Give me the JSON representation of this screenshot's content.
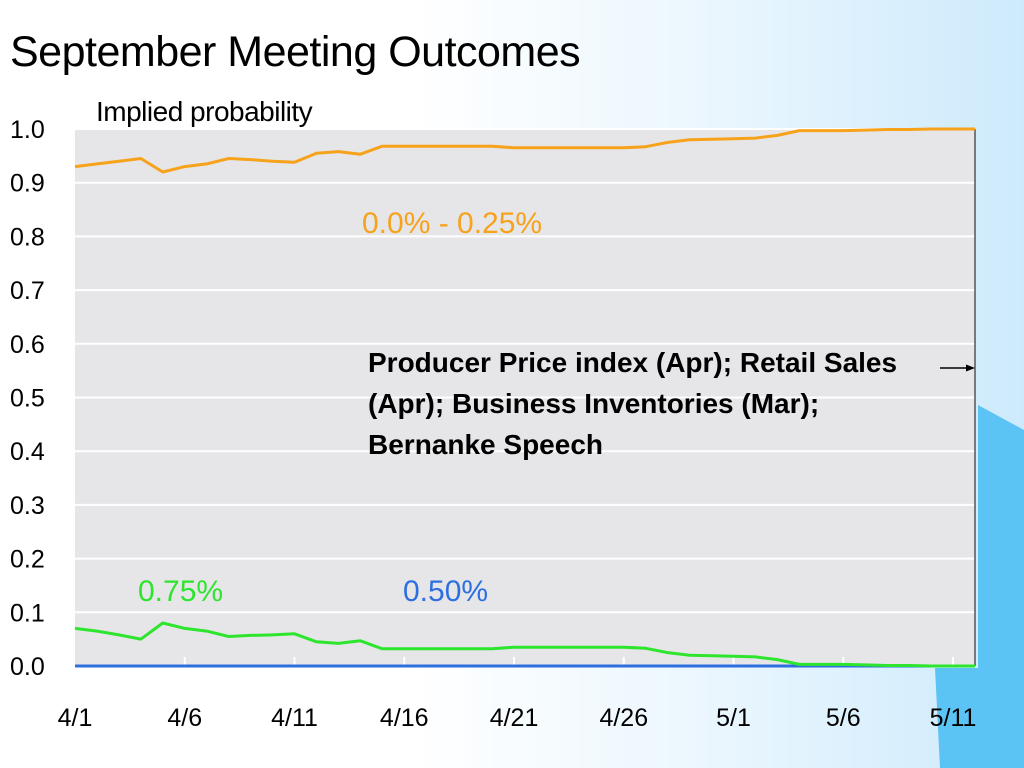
{
  "colors": {
    "plot_bg": "#e6e6e9",
    "grid": "#ffffff",
    "series_0_0_25": "#f7a21b",
    "series_0_50": "#2e6fe0",
    "series_0_75": "#2ee52e",
    "accent_blue": "#5cc3f5"
  },
  "chart_data": {
    "type": "line",
    "title": "September Meeting Outcomes",
    "ylabel": "Implied probability",
    "xlabel": "",
    "ylim": [
      0,
      1
    ],
    "grid": true,
    "y_ticks": [
      "0.0",
      "0.1",
      "0.2",
      "0.3",
      "0.4",
      "0.5",
      "0.6",
      "0.7",
      "0.8",
      "0.9",
      "1.0"
    ],
    "x_ticks": [
      "4/1",
      "4/6",
      "4/11",
      "4/16",
      "4/21",
      "4/26",
      "5/1",
      "5/6",
      "5/11"
    ],
    "x_dates": [
      "4/1",
      "4/2",
      "4/3",
      "4/4",
      "4/5",
      "4/6",
      "4/7",
      "4/8",
      "4/9",
      "4/10",
      "4/11",
      "4/12",
      "4/13",
      "4/14",
      "4/15",
      "4/16",
      "4/17",
      "4/18",
      "4/19",
      "4/20",
      "4/21",
      "4/22",
      "4/23",
      "4/24",
      "4/25",
      "4/26",
      "4/27",
      "4/28",
      "4/29",
      "4/30",
      "5/1",
      "5/2",
      "5/3",
      "5/4",
      "5/5",
      "5/6",
      "5/7",
      "5/8",
      "5/9",
      "5/10",
      "5/11",
      "5/12"
    ],
    "series": [
      {
        "name": "0.0% - 0.25%",
        "color": "#f7a21b",
        "values": [
          0.93,
          0.935,
          0.94,
          0.945,
          0.92,
          0.93,
          0.935,
          0.945,
          0.943,
          0.94,
          0.938,
          0.955,
          0.958,
          0.953,
          0.968,
          0.968,
          0.968,
          0.968,
          0.968,
          0.968,
          0.965,
          0.965,
          0.965,
          0.965,
          0.965,
          0.965,
          0.967,
          0.975,
          0.98,
          0.981,
          0.982,
          0.983,
          0.988,
          0.997,
          0.997,
          0.997,
          0.998,
          0.999,
          0.999,
          1.0,
          1.0,
          1.0
        ]
      },
      {
        "name": "0.50%",
        "color": "#2e6fe0",
        "values": [
          0.0,
          0.0,
          0.0,
          0.0,
          0.0,
          0.0,
          0.0,
          0.0,
          0.0,
          0.0,
          0.0,
          0.0,
          0.0,
          0.0,
          0.0,
          0.0,
          0.0,
          0.0,
          0.0,
          0.0,
          0.0,
          0.0,
          0.0,
          0.0,
          0.0,
          0.0,
          0.0,
          0.0,
          0.0,
          0.0,
          0.0,
          0.0,
          0.0,
          0.0,
          0.0,
          0.0,
          0.0,
          0.0,
          0.0,
          0.0,
          0.0,
          0.0
        ]
      },
      {
        "name": "0.75%",
        "color": "#2ee52e",
        "values": [
          0.07,
          0.065,
          0.058,
          0.05,
          0.08,
          0.07,
          0.065,
          0.055,
          0.057,
          0.058,
          0.06,
          0.045,
          0.042,
          0.047,
          0.032,
          0.032,
          0.032,
          0.032,
          0.032,
          0.032,
          0.035,
          0.035,
          0.035,
          0.035,
          0.035,
          0.035,
          0.033,
          0.025,
          0.02,
          0.019,
          0.018,
          0.017,
          0.012,
          0.003,
          0.003,
          0.003,
          0.002,
          0.001,
          0.001,
          0.0,
          0.0,
          0.0
        ]
      }
    ],
    "annotation": "Producer Price index (Apr); Retail Sales (Apr); Business Inventories (Mar); Bernanke Speech"
  }
}
